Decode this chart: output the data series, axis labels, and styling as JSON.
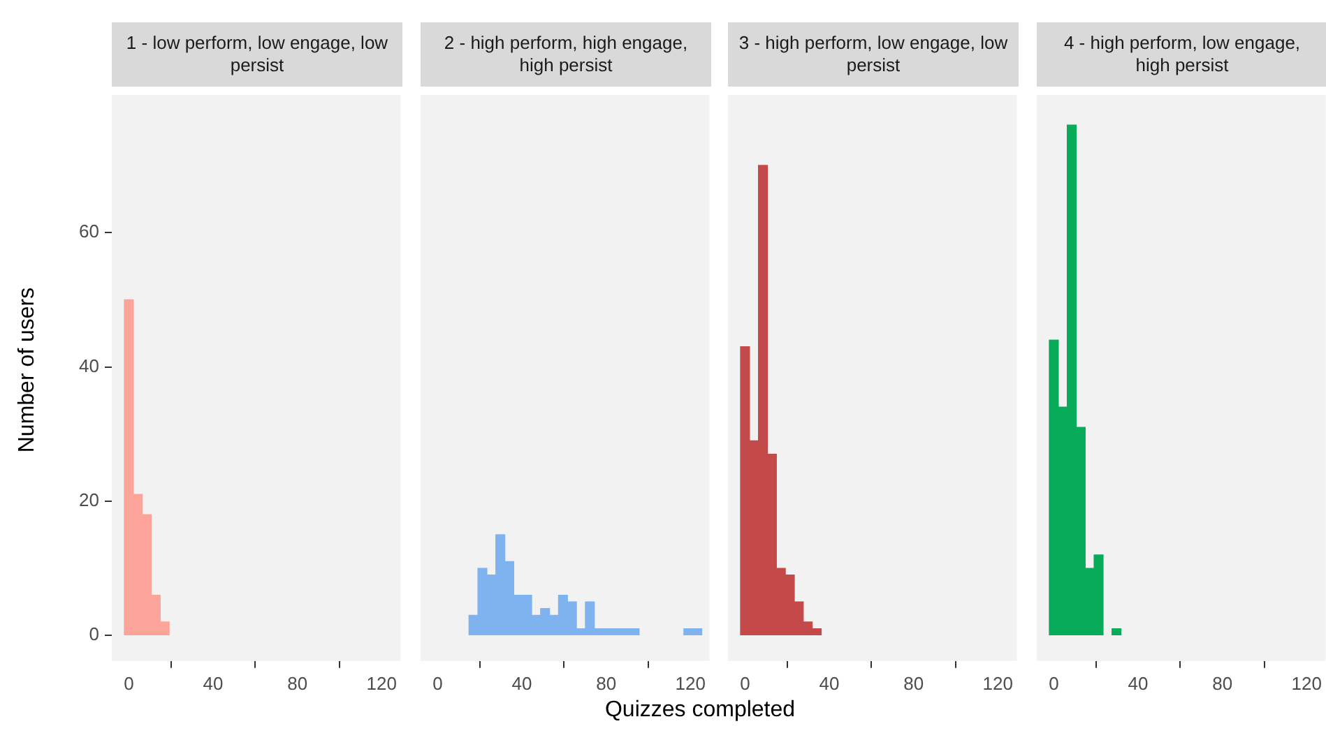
{
  "chart_data": [
    {
      "type": "histogram",
      "title": "1 - low perform, low engage, low persist",
      "ylabel": "Number of users",
      "color": "#fca39a",
      "bins": [
        -2.125,
        2.125,
        6.375,
        10.625,
        14.875,
        19.125
      ],
      "values": [
        50,
        21,
        18,
        6,
        2
      ],
      "xlim": [
        -8.1,
        129
      ],
      "xticks": [
        0,
        40,
        80,
        120
      ],
      "ylim": [
        -3.8,
        80.5
      ],
      "yticks": [
        0,
        20,
        40,
        60
      ],
      "grid": false
    },
    {
      "type": "histogram",
      "title": "2 - high perform, high engage, high persist",
      "xlabel": "Quizzes completed",
      "color": "#7fb3f0",
      "bins": [
        14.875,
        19.125,
        23.375,
        27.625,
        31.875,
        36.125,
        40.375,
        44.625,
        48.875,
        53.125,
        57.375,
        61.625,
        65.875,
        70.125,
        74.375,
        78.625,
        82.875,
        87.125,
        91.375,
        95.625,
        99.875,
        104.125,
        108.375,
        112.625,
        116.875,
        121.125,
        125.375
      ],
      "values": [
        3,
        10,
        9,
        15,
        11,
        6,
        6,
        3,
        4,
        3,
        6,
        5,
        1,
        5,
        1,
        1,
        1,
        1,
        1,
        0,
        0,
        0,
        0,
        0,
        1,
        1
      ],
      "xlim": [
        -8.1,
        129
      ],
      "xticks": [
        0,
        40,
        80,
        120
      ],
      "ylim": [
        -3.8,
        80.5
      ],
      "yticks": [
        0,
        20,
        40,
        60
      ],
      "tick_labels": "x",
      "grid": false
    },
    {
      "type": "histogram",
      "title": "3 - high perform, low engage, low persist",
      "color": "#c44a4a",
      "bins": [
        -2.125,
        2.125,
        6.375,
        10.625,
        14.875,
        19.125,
        23.375,
        27.625,
        31.875,
        36.125
      ],
      "values": [
        43,
        29,
        70,
        27,
        10,
        9,
        5,
        2,
        1
      ],
      "xlim": [
        -8.1,
        129
      ],
      "xticks": [
        0,
        40,
        80,
        120
      ],
      "ylim": [
        -3.8,
        80.5
      ],
      "yticks": [
        0,
        20,
        40,
        60
      ],
      "tick_labels": "x",
      "grid": false
    },
    {
      "type": "histogram",
      "title": "4 - high perform, low engage, high persist",
      "color": "#07ab5a",
      "bins": [
        -2.125,
        2.125,
        6.375,
        10.625,
        14.875,
        19.125,
        23.375,
        27.625,
        31.875
      ],
      "values": [
        44,
        34,
        76,
        31,
        10,
        12,
        0,
        1
      ],
      "xlim": [
        -8.1,
        129
      ],
      "xticks": [
        0,
        40,
        80,
        120
      ],
      "ylim": [
        -3.8,
        80.5
      ],
      "yticks": [
        0,
        20,
        40,
        60
      ],
      "tick_labels": "x",
      "grid": false
    }
  ]
}
